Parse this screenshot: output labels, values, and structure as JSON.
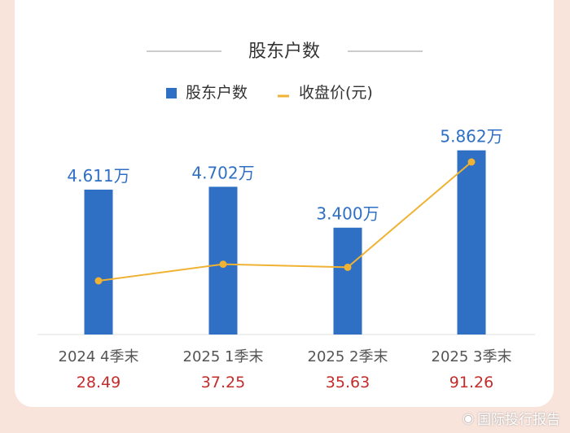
{
  "chart_data": {
    "type": "bar",
    "title": "股东户数",
    "categories": [
      "2024 4季末",
      "2025 1季末",
      "2025 2季末",
      "2025 3季末"
    ],
    "series": [
      {
        "name": "股东户数",
        "kind": "bar",
        "values": [
          4.611,
          4.702,
          3.4,
          5.862
        ],
        "labels": [
          "4.611万",
          "4.702万",
          "3.400万",
          "5.862万"
        ],
        "color": "#2f6fc4",
        "label_color": "#2f6fc4"
      },
      {
        "name": "收盘价(元)",
        "kind": "line",
        "values": [
          28.49,
          37.25,
          35.63,
          91.26
        ],
        "labels": [
          "28.49",
          "37.25",
          "35.63",
          "91.26"
        ],
        "color": "#f0b233",
        "label_color": "#c42c2c"
      }
    ],
    "legend_position": "top-center",
    "grid": false
  },
  "watermark": {
    "text": "国际投行报告"
  }
}
